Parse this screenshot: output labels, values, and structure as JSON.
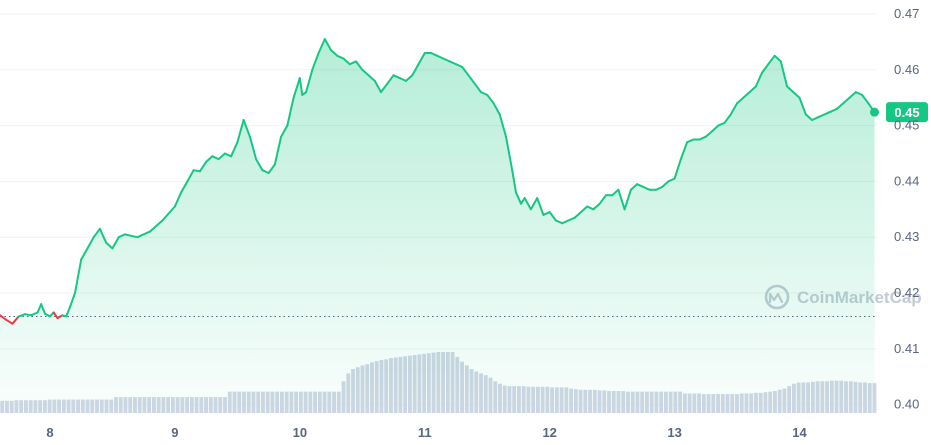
{
  "watermark": "CoinMarketCap",
  "current_price_label": "0.45",
  "colors": {
    "line_up": "#16c784",
    "line_down": "#ea3943",
    "fill_top": "#16c784",
    "volume": "#cfd6e4",
    "grid": "#eff2f5",
    "badge": "#16c784",
    "open_line": "#58667e"
  },
  "chart_data": {
    "type": "line",
    "title": "",
    "xlabel": "",
    "ylabel": "",
    "x_ticks": [
      "8",
      "9",
      "10",
      "11",
      "12",
      "13",
      "14"
    ],
    "y_ticks": [
      "0.47",
      "0.46",
      "0.45",
      "0.44",
      "0.43",
      "0.42",
      "0.41",
      "0.40"
    ],
    "y_range": [
      0.3985,
      0.4725
    ],
    "x_range": [
      7.6,
      14.62
    ],
    "open_price": 0.4158,
    "current_price": 0.4524,
    "grid": true,
    "series": [
      {
        "values": [
          [
            7.6,
            0.416
          ],
          [
            7.65,
            0.4152
          ],
          [
            7.7,
            0.4145
          ],
          [
            7.75,
            0.4158
          ],
          [
            7.8,
            0.4162
          ],
          [
            7.85,
            0.416
          ],
          [
            7.9,
            0.4165
          ],
          [
            7.93,
            0.418
          ],
          [
            7.96,
            0.4163
          ],
          [
            8.0,
            0.4158
          ],
          [
            8.03,
            0.4165
          ],
          [
            8.06,
            0.4155
          ],
          [
            8.1,
            0.416
          ],
          [
            8.13,
            0.4158
          ],
          [
            8.16,
            0.4175
          ],
          [
            8.2,
            0.42
          ],
          [
            8.25,
            0.426
          ],
          [
            8.3,
            0.428
          ],
          [
            8.35,
            0.43
          ],
          [
            8.4,
            0.4315
          ],
          [
            8.45,
            0.429
          ],
          [
            8.5,
            0.428
          ],
          [
            8.55,
            0.43
          ],
          [
            8.6,
            0.4305
          ],
          [
            8.7,
            0.43
          ],
          [
            8.8,
            0.431
          ],
          [
            8.9,
            0.433
          ],
          [
            9.0,
            0.4355
          ],
          [
            9.05,
            0.438
          ],
          [
            9.1,
            0.44
          ],
          [
            9.15,
            0.442
          ],
          [
            9.2,
            0.4418
          ],
          [
            9.25,
            0.4435
          ],
          [
            9.3,
            0.4445
          ],
          [
            9.35,
            0.444
          ],
          [
            9.4,
            0.445
          ],
          [
            9.45,
            0.4445
          ],
          [
            9.5,
            0.447
          ],
          [
            9.55,
            0.451
          ],
          [
            9.6,
            0.448
          ],
          [
            9.65,
            0.444
          ],
          [
            9.7,
            0.442
          ],
          [
            9.75,
            0.4415
          ],
          [
            9.8,
            0.443
          ],
          [
            9.85,
            0.448
          ],
          [
            9.9,
            0.45
          ],
          [
            9.95,
            0.455
          ],
          [
            10.0,
            0.4585
          ],
          [
            10.02,
            0.4555
          ],
          [
            10.05,
            0.456
          ],
          [
            10.1,
            0.46
          ],
          [
            10.15,
            0.463
          ],
          [
            10.2,
            0.4655
          ],
          [
            10.25,
            0.4635
          ],
          [
            10.3,
            0.4625
          ],
          [
            10.35,
            0.462
          ],
          [
            10.4,
            0.461
          ],
          [
            10.45,
            0.4615
          ],
          [
            10.5,
            0.46
          ],
          [
            10.55,
            0.459
          ],
          [
            10.6,
            0.458
          ],
          [
            10.65,
            0.456
          ],
          [
            10.7,
            0.4575
          ],
          [
            10.75,
            0.459
          ],
          [
            10.8,
            0.4585
          ],
          [
            10.85,
            0.458
          ],
          [
            10.9,
            0.459
          ],
          [
            10.95,
            0.461
          ],
          [
            11.0,
            0.463
          ],
          [
            11.05,
            0.463
          ],
          [
            11.1,
            0.4625
          ],
          [
            11.15,
            0.462
          ],
          [
            11.2,
            0.4615
          ],
          [
            11.25,
            0.461
          ],
          [
            11.3,
            0.4605
          ],
          [
            11.35,
            0.459
          ],
          [
            11.4,
            0.4575
          ],
          [
            11.45,
            0.456
          ],
          [
            11.5,
            0.4555
          ],
          [
            11.55,
            0.454
          ],
          [
            11.6,
            0.452
          ],
          [
            11.65,
            0.448
          ],
          [
            11.7,
            0.442
          ],
          [
            11.73,
            0.438
          ],
          [
            11.77,
            0.436
          ],
          [
            11.8,
            0.437
          ],
          [
            11.85,
            0.435
          ],
          [
            11.9,
            0.437
          ],
          [
            11.95,
            0.434
          ],
          [
            12.0,
            0.4345
          ],
          [
            12.05,
            0.433
          ],
          [
            12.1,
            0.4325
          ],
          [
            12.15,
            0.433
          ],
          [
            12.2,
            0.4335
          ],
          [
            12.25,
            0.4345
          ],
          [
            12.3,
            0.4355
          ],
          [
            12.35,
            0.435
          ],
          [
            12.4,
            0.436
          ],
          [
            12.45,
            0.4375
          ],
          [
            12.5,
            0.4375
          ],
          [
            12.55,
            0.4385
          ],
          [
            12.6,
            0.435
          ],
          [
            12.65,
            0.4385
          ],
          [
            12.7,
            0.4395
          ],
          [
            12.75,
            0.439
          ],
          [
            12.8,
            0.4385
          ],
          [
            12.85,
            0.4385
          ],
          [
            12.9,
            0.439
          ],
          [
            12.95,
            0.44
          ],
          [
            13.0,
            0.4405
          ],
          [
            13.05,
            0.444
          ],
          [
            13.1,
            0.447
          ],
          [
            13.15,
            0.4475
          ],
          [
            13.2,
            0.4475
          ],
          [
            13.25,
            0.448
          ],
          [
            13.3,
            0.449
          ],
          [
            13.35,
            0.45
          ],
          [
            13.4,
            0.4505
          ],
          [
            13.45,
            0.452
          ],
          [
            13.5,
            0.454
          ],
          [
            13.55,
            0.455
          ],
          [
            13.6,
            0.456
          ],
          [
            13.65,
            0.457
          ],
          [
            13.7,
            0.4595
          ],
          [
            13.75,
            0.461
          ],
          [
            13.8,
            0.4625
          ],
          [
            13.85,
            0.4615
          ],
          [
            13.9,
            0.457
          ],
          [
            13.95,
            0.456
          ],
          [
            14.0,
            0.455
          ],
          [
            14.05,
            0.452
          ],
          [
            14.1,
            0.451
          ],
          [
            14.15,
            0.4515
          ],
          [
            14.2,
            0.452
          ],
          [
            14.25,
            0.4525
          ],
          [
            14.3,
            0.453
          ],
          [
            14.35,
            0.454
          ],
          [
            14.4,
            0.455
          ],
          [
            14.45,
            0.456
          ],
          [
            14.5,
            0.4555
          ],
          [
            14.55,
            0.454
          ],
          [
            14.6,
            0.4524
          ]
        ]
      }
    ],
    "volume": [
      0.2,
      0.2,
      0.2,
      0.21,
      0.21,
      0.21,
      0.21,
      0.21,
      0.21,
      0.21,
      0.22,
      0.22,
      0.22,
      0.22,
      0.22,
      0.22,
      0.22,
      0.22,
      0.22,
      0.22,
      0.22,
      0.22,
      0.22,
      0.22,
      0.26,
      0.26,
      0.26,
      0.26,
      0.26,
      0.26,
      0.26,
      0.26,
      0.26,
      0.26,
      0.26,
      0.26,
      0.26,
      0.26,
      0.26,
      0.26,
      0.26,
      0.26,
      0.26,
      0.26,
      0.26,
      0.26,
      0.26,
      0.26,
      0.35,
      0.35,
      0.35,
      0.35,
      0.35,
      0.35,
      0.35,
      0.35,
      0.35,
      0.35,
      0.35,
      0.35,
      0.35,
      0.35,
      0.35,
      0.35,
      0.35,
      0.35,
      0.35,
      0.35,
      0.35,
      0.35,
      0.35,
      0.35,
      0.52,
      0.65,
      0.72,
      0.75,
      0.78,
      0.8,
      0.83,
      0.85,
      0.87,
      0.88,
      0.9,
      0.91,
      0.92,
      0.93,
      0.94,
      0.95,
      0.96,
      0.97,
      0.98,
      0.99,
      1.0,
      1.0,
      1.0,
      1.0,
      0.92,
      0.84,
      0.78,
      0.72,
      0.68,
      0.65,
      0.62,
      0.58,
      0.52,
      0.48,
      0.45,
      0.44,
      0.44,
      0.44,
      0.44,
      0.43,
      0.43,
      0.43,
      0.43,
      0.43,
      0.42,
      0.42,
      0.42,
      0.42,
      0.4,
      0.39,
      0.38,
      0.38,
      0.38,
      0.38,
      0.37,
      0.37,
      0.36,
      0.36,
      0.36,
      0.36,
      0.35,
      0.35,
      0.35,
      0.35,
      0.35,
      0.35,
      0.35,
      0.35,
      0.35,
      0.35,
      0.35,
      0.35,
      0.32,
      0.32,
      0.32,
      0.32,
      0.31,
      0.31,
      0.31,
      0.31,
      0.31,
      0.31,
      0.31,
      0.31,
      0.32,
      0.32,
      0.32,
      0.33,
      0.33,
      0.34,
      0.35,
      0.36,
      0.38,
      0.4,
      0.44,
      0.48,
      0.5,
      0.5,
      0.5,
      0.51,
      0.52,
      0.52,
      0.52,
      0.53,
      0.53,
      0.53,
      0.52,
      0.52,
      0.51,
      0.5,
      0.5,
      0.49,
      0.49
    ]
  }
}
